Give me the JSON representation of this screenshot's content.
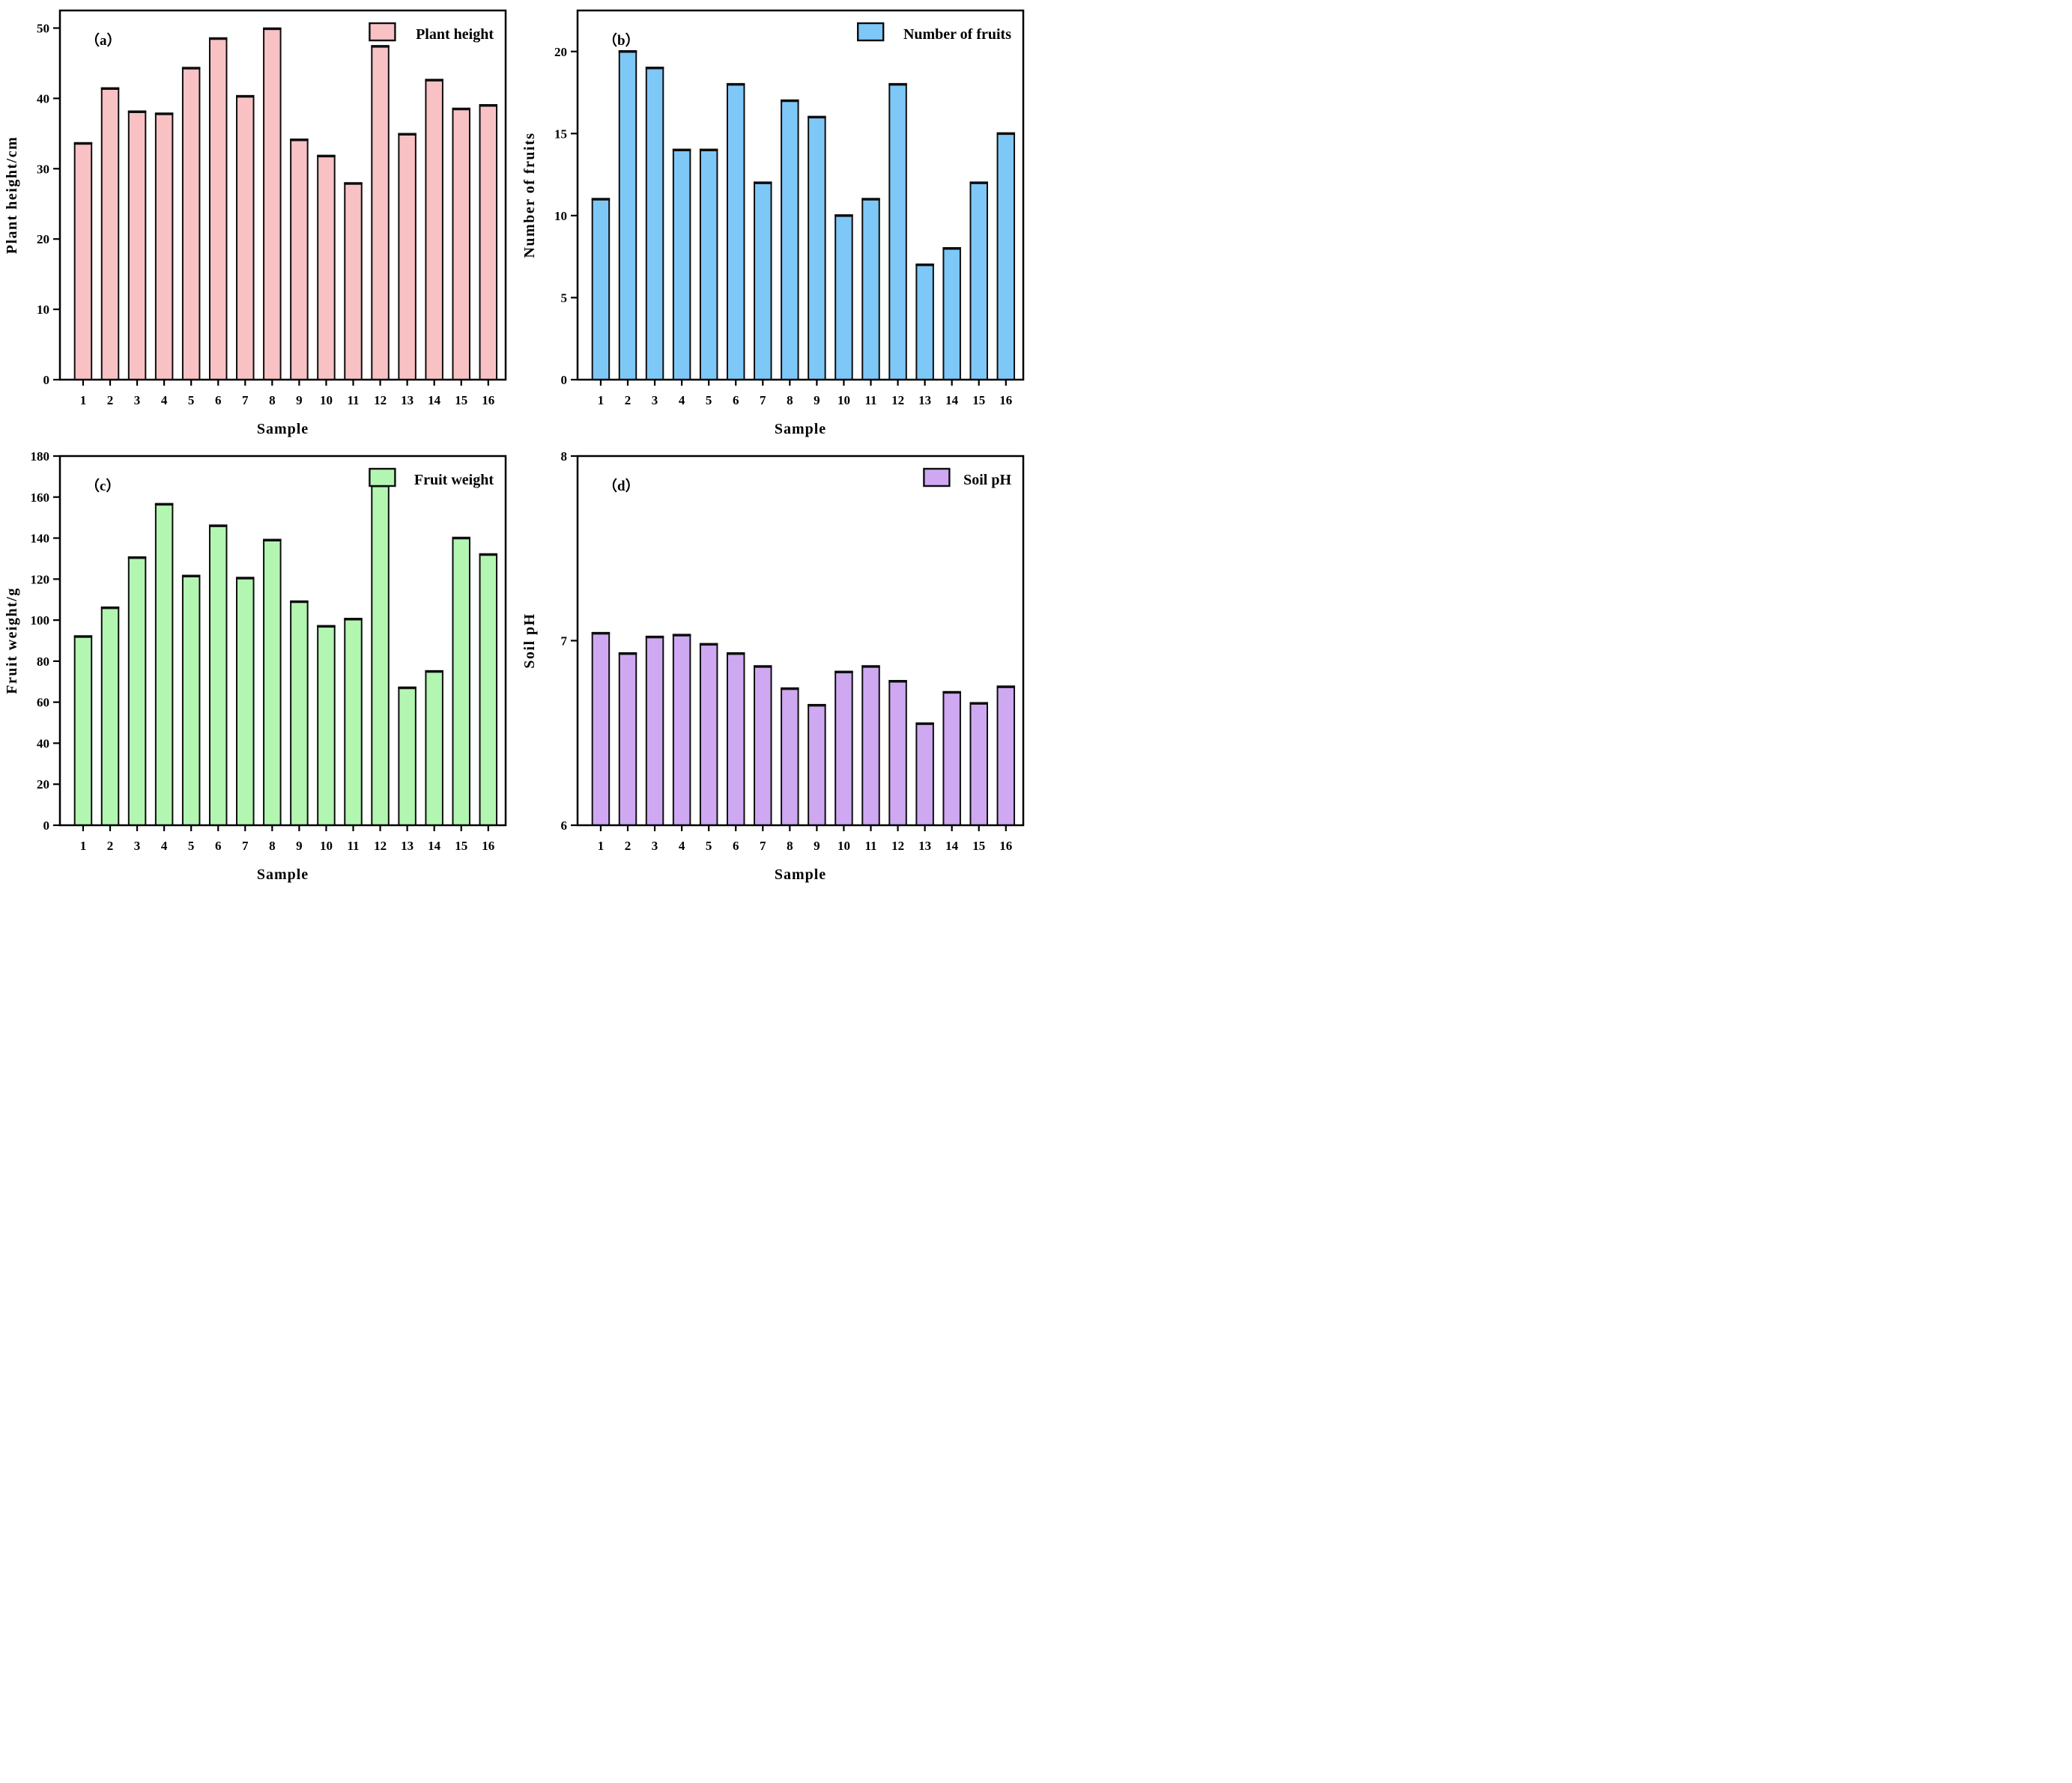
{
  "figure": {
    "background": "#ffffff",
    "axis_color": "#000000",
    "panel_order": [
      "a",
      "b",
      "c",
      "d"
    ]
  },
  "chart_data": [
    {
      "type": "bar",
      "panel_label": "（a）",
      "legend": "Plant height",
      "legend_position": "top-right",
      "xlabel": "Sample",
      "ylabel": "Plant height/cm",
      "bar_color": "#f8c2c5",
      "bar_edge_color": "#0d0d0d",
      "grid": false,
      "categories": [
        "1",
        "2",
        "3",
        "4",
        "5",
        "6",
        "7",
        "8",
        "9",
        "10",
        "11",
        "12",
        "13",
        "14",
        "15",
        "16"
      ],
      "values": [
        33.6,
        41.4,
        38.1,
        37.8,
        44.3,
        48.5,
        40.3,
        49.9,
        34.1,
        31.8,
        27.9,
        47.4,
        34.9,
        42.6,
        38.5,
        39.0
      ],
      "ylim": [
        0,
        52.5
      ],
      "yticks": [
        0,
        10,
        20,
        30,
        40,
        50
      ]
    },
    {
      "type": "bar",
      "panel_label": "（b）",
      "legend": "Number of fruits",
      "legend_position": "top-right",
      "xlabel": "Sample",
      "ylabel": "Number of fruits",
      "bar_color": "#7ec8f8",
      "bar_edge_color": "#0d0d0d",
      "grid": false,
      "categories": [
        "1",
        "2",
        "3",
        "4",
        "5",
        "6",
        "7",
        "8",
        "9",
        "10",
        "11",
        "12",
        "13",
        "14",
        "15",
        "16"
      ],
      "values": [
        11,
        20,
        19,
        14,
        14,
        18,
        12,
        17,
        16,
        10,
        11,
        18,
        7,
        8,
        12,
        15
      ],
      "ylim": [
        0,
        22.5
      ],
      "yticks": [
        0,
        5,
        10,
        15,
        20
      ]
    },
    {
      "type": "bar",
      "panel_label": "（c）",
      "legend": "Fruit weight",
      "legend_position": "top-right",
      "xlabel": "Sample",
      "ylabel": "Fruit weight/g",
      "bar_color": "#b2f6b2",
      "bar_edge_color": "#0d0d0d",
      "grid": false,
      "categories": [
        "1",
        "2",
        "3",
        "4",
        "5",
        "6",
        "7",
        "8",
        "9",
        "10",
        "11",
        "12",
        "13",
        "14",
        "15",
        "16"
      ],
      "values": [
        92,
        106,
        130.5,
        156.5,
        121.5,
        146,
        120.5,
        139,
        109,
        97,
        100.5,
        165.5,
        67,
        75,
        140,
        132
      ],
      "ylim": [
        0,
        180
      ],
      "yticks": [
        0,
        20,
        40,
        60,
        80,
        100,
        120,
        140,
        160,
        180
      ]
    },
    {
      "type": "bar",
      "panel_label": "（d）",
      "legend": "Soil pH",
      "legend_position": "top-right",
      "xlabel": "Sample",
      "ylabel": "Soil pH",
      "bar_color": "#cea9f2",
      "bar_edge_color": "#0d0d0d",
      "grid": false,
      "categories": [
        "1",
        "2",
        "3",
        "4",
        "5",
        "6",
        "7",
        "8",
        "9",
        "10",
        "11",
        "12",
        "13",
        "14",
        "15",
        "16"
      ],
      "values": [
        7.04,
        6.93,
        7.02,
        7.03,
        6.98,
        6.93,
        6.86,
        6.74,
        6.65,
        6.83,
        6.86,
        6.78,
        6.55,
        6.72,
        6.66,
        6.75
      ],
      "ylim": [
        6,
        8
      ],
      "yticks": [
        6,
        7,
        8
      ]
    }
  ]
}
